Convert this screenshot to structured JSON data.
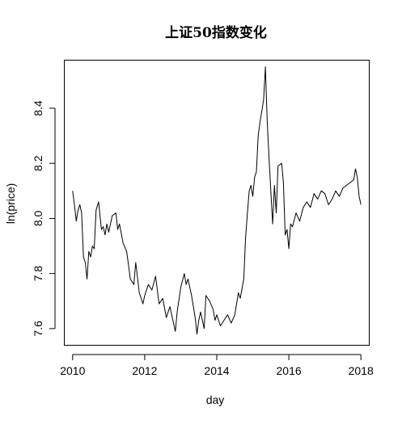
{
  "chart_data": {
    "type": "line",
    "title": "上证50指数变化",
    "xlabel": "day",
    "ylabel": "ln(price)",
    "xlim": [
      2009.78,
      2018.22
    ],
    "ylim": [
      7.541,
      8.573
    ],
    "x_ticks": [
      2010,
      2012,
      2014,
      2016,
      2018
    ],
    "x_tick_labels": [
      "2010",
      "2012",
      "2014",
      "2016",
      "2018"
    ],
    "y_ticks": [
      7.6,
      7.8,
      8.0,
      8.2,
      8.4
    ],
    "y_tick_labels": [
      "7.6",
      "7.8",
      "8.0",
      "8.2",
      "8.4"
    ],
    "grid": false,
    "legend": "none",
    "series": [
      {
        "color": "#000000",
        "x": [
          2010.0,
          2010.05,
          2010.1,
          2010.15,
          2010.2,
          2010.25,
          2010.3,
          2010.35,
          2010.4,
          2010.45,
          2010.5,
          2010.55,
          2010.6,
          2010.65,
          2010.72,
          2010.8,
          2010.85,
          2010.9,
          2010.95,
          2011.0,
          2011.1,
          2011.2,
          2011.25,
          2011.3,
          2011.4,
          2011.5,
          2011.55,
          2011.6,
          2011.7,
          2011.75,
          2011.85,
          2011.95,
          2012.0,
          2012.1,
          2012.2,
          2012.3,
          2012.4,
          2012.5,
          2012.6,
          2012.7,
          2012.8,
          2012.85,
          2012.9,
          2013.0,
          2013.1,
          2013.15,
          2013.2,
          2013.3,
          2013.4,
          2013.45,
          2013.5,
          2013.55,
          2013.65,
          2013.7,
          2013.8,
          2013.9,
          2013.95,
          2014.0,
          2014.1,
          2014.2,
          2014.3,
          2014.4,
          2014.5,
          2014.6,
          2014.65,
          2014.75,
          2014.8,
          2014.85,
          2014.9,
          2014.95,
          2015.0,
          2015.05,
          2015.1,
          2015.15,
          2015.2,
          2015.25,
          2015.3,
          2015.35,
          2015.4,
          2015.45,
          2015.5,
          2015.55,
          2015.6,
          2015.65,
          2015.7,
          2015.8,
          2015.85,
          2015.9,
          2015.95,
          2016.0,
          2016.05,
          2016.1,
          2016.2,
          2016.3,
          2016.4,
          2016.5,
          2016.6,
          2016.7,
          2016.8,
          2016.9,
          2017.0,
          2017.1,
          2017.2,
          2017.3,
          2017.4,
          2017.5,
          2017.6,
          2017.7,
          2017.8,
          2017.85,
          2017.9,
          2017.95,
          2018.0
        ],
        "y": [
          8.1,
          8.05,
          7.99,
          8.03,
          8.05,
          8.02,
          7.86,
          7.84,
          7.78,
          7.88,
          7.86,
          7.9,
          7.89,
          8.03,
          8.06,
          7.96,
          7.97,
          7.94,
          7.98,
          7.95,
          8.01,
          8.02,
          7.96,
          7.98,
          7.91,
          7.88,
          7.83,
          7.78,
          7.76,
          7.84,
          7.73,
          7.69,
          7.72,
          7.76,
          7.74,
          7.79,
          7.69,
          7.71,
          7.64,
          7.68,
          7.62,
          7.59,
          7.66,
          7.75,
          7.8,
          7.76,
          7.78,
          7.72,
          7.64,
          7.58,
          7.63,
          7.66,
          7.6,
          7.72,
          7.7,
          7.67,
          7.63,
          7.65,
          7.61,
          7.63,
          7.65,
          7.62,
          7.65,
          7.73,
          7.71,
          7.78,
          7.93,
          8.02,
          8.1,
          8.12,
          8.08,
          8.15,
          8.17,
          8.3,
          8.35,
          8.39,
          8.43,
          8.55,
          8.35,
          8.22,
          8.1,
          7.98,
          8.12,
          8.02,
          8.19,
          8.2,
          8.13,
          7.94,
          7.96,
          7.89,
          7.98,
          7.97,
          8.02,
          7.99,
          8.04,
          8.06,
          8.04,
          8.09,
          8.07,
          8.1,
          8.09,
          8.05,
          8.07,
          8.1,
          8.08,
          8.11,
          8.12,
          8.13,
          8.14,
          8.18,
          8.15,
          8.08,
          8.05
        ]
      }
    ]
  }
}
